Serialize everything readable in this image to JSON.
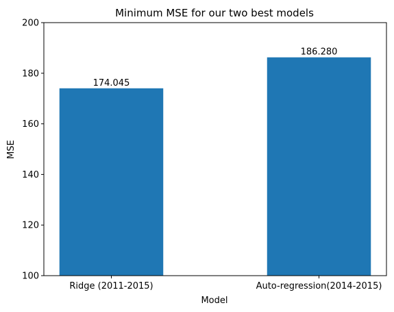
{
  "chart_data": {
    "type": "bar",
    "title": "Minimum MSE for our two best models",
    "xlabel": "Model",
    "ylabel": "MSE",
    "categories": [
      "Ridge (2011-2015)",
      "Auto-regression(2014-2015)"
    ],
    "values": [
      174.045,
      186.28
    ],
    "value_labels": [
      "174.045",
      "186.280"
    ],
    "ylim": [
      100,
      200
    ],
    "yticks": [
      100,
      120,
      140,
      160,
      180,
      200
    ],
    "ytick_labels": [
      "100",
      "120",
      "140",
      "160",
      "180",
      "200"
    ],
    "bar_color": "#1f77b4",
    "grid": false,
    "legend": "none"
  }
}
